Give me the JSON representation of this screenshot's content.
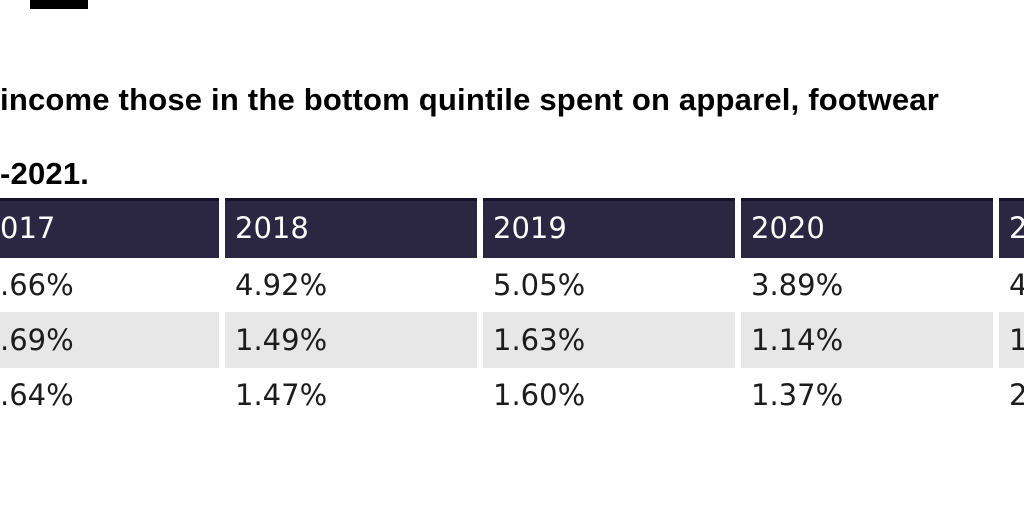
{
  "page": {
    "background_color": "#ffffff",
    "divider_bar_color": "#000000"
  },
  "headline": {
    "line1": "income those in the bottom quintile spent on apparel, footwear",
    "line2": "-2021.",
    "text_color": "#000000"
  },
  "chart_data": {
    "type": "table",
    "note": "cropped table; first and last columns cut off by screenshot edges",
    "header_bg": "#2b2743",
    "header_top_stripe": "#15122b",
    "header_text_color": "#fdfdfd",
    "alt_row_bg": "#e7e7e7",
    "body_text_color": "#1c1c1c",
    "columns": [
      "017",
      "2018",
      "2019",
      "2020",
      "2"
    ],
    "rows": [
      [
        ".66%",
        "4.92%",
        "5.05%",
        "3.89%",
        "4"
      ],
      [
        ".69%",
        "1.49%",
        "1.63%",
        "1.14%",
        "1"
      ],
      [
        ".64%",
        "1.47%",
        "1.60%",
        "1.37%",
        "2"
      ]
    ]
  }
}
